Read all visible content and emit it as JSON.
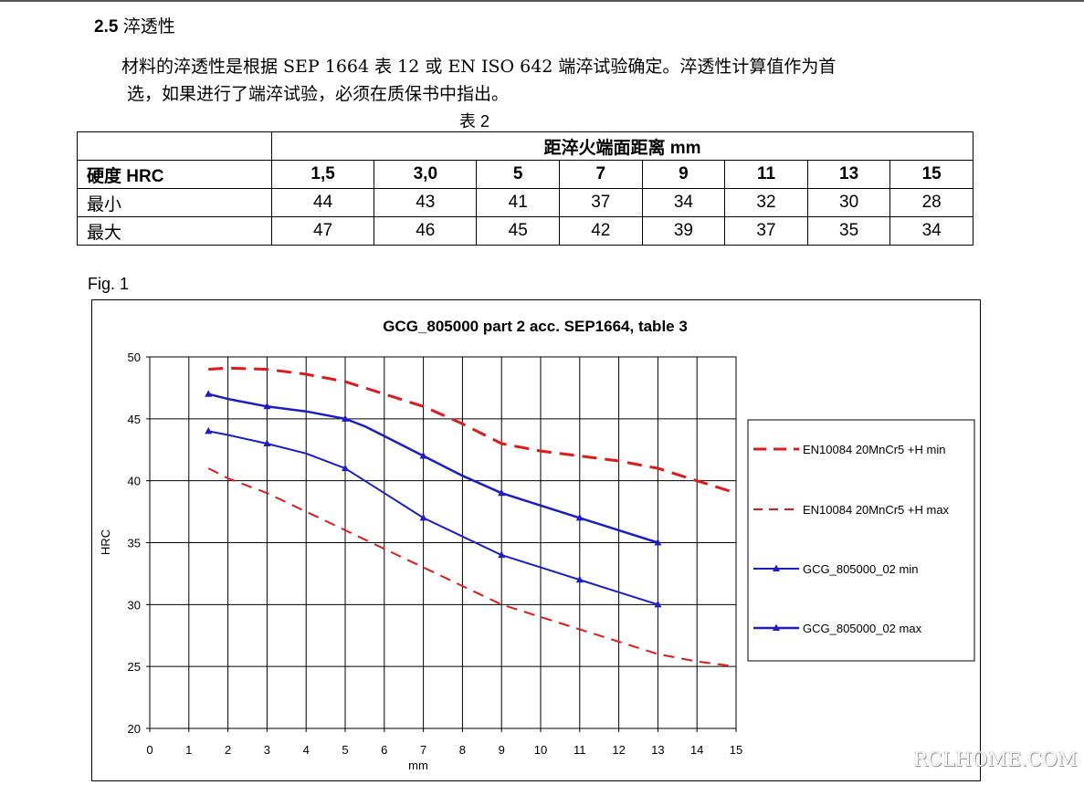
{
  "section": {
    "number": "2.5",
    "title": "淬透性"
  },
  "paragraph": {
    "line1": "材料的淬透性是根据 SEP 1664 表 12 或 EN ISO 642 端淬试验确定。淬透性计算值作为首",
    "line2": "选，如果进行了端淬试验，必须在质保书中指出。"
  },
  "table": {
    "caption": "表 2",
    "span_header": "距淬火端面距离  mm",
    "hardness_label": "硬度  HRC",
    "distances": [
      "1,5",
      "3,0",
      "5",
      "7",
      "9",
      "11",
      "13",
      "15"
    ],
    "rows": [
      {
        "label": "最小",
        "values": [
          "44",
          "43",
          "41",
          "37",
          "34",
          "32",
          "30",
          "28"
        ]
      },
      {
        "label": "最大",
        "values": [
          "47",
          "46",
          "45",
          "42",
          "39",
          "37",
          "35",
          "34"
        ]
      }
    ]
  },
  "figure_label": "Fig. 1",
  "chart_data": {
    "type": "line",
    "title": "GCG_805000 part 2 acc. SEP1664, table 3",
    "xlabel": "mm",
    "ylabel": "HRC",
    "xlim": [
      0,
      15
    ],
    "ylim": [
      20,
      50
    ],
    "xticks": [
      "0",
      "1",
      "2",
      "3",
      "4",
      "5",
      "6",
      "7",
      "8",
      "9",
      "10",
      "11",
      "12",
      "13",
      "14",
      "15"
    ],
    "yticks": [
      "20",
      "25",
      "30",
      "35",
      "40",
      "45",
      "50"
    ],
    "grid": true,
    "legend_position": "right",
    "series": [
      {
        "name": "EN10084 20MnCr5 +H min",
        "style": "dashed-thick",
        "color": "#e0191b",
        "x": [
          1.5,
          2,
          3,
          4,
          5,
          6,
          7,
          8,
          9,
          10,
          11,
          12,
          13,
          14,
          15
        ],
        "y": [
          49,
          49.1,
          49,
          48.6,
          48,
          47,
          46,
          44.6,
          43,
          42.4,
          42,
          41.6,
          41,
          40,
          39
        ]
      },
      {
        "name": "EN10084 20MnCr5 +H max",
        "style": "dashed",
        "color": "#e0191b",
        "x": [
          1.5,
          2,
          3,
          4,
          5,
          6,
          7,
          8,
          9,
          10,
          11,
          12,
          13,
          14,
          15
        ],
        "y": [
          41,
          40.2,
          39,
          37.5,
          36,
          34.5,
          33,
          31.5,
          30,
          29,
          28,
          27,
          26,
          25.4,
          25
        ]
      },
      {
        "name": "GCG_805000_02 min",
        "style": "solid-markers",
        "color": "#1c1cc8",
        "x": [
          1.5,
          2,
          3,
          4,
          5,
          6,
          7,
          8,
          9,
          10,
          11,
          12,
          13
        ],
        "y": [
          44,
          43.7,
          43,
          42.2,
          41,
          39,
          37,
          35.5,
          34,
          33,
          32,
          31,
          30
        ]
      },
      {
        "name": "GCG_805000_02 max",
        "style": "solid-markers-thick",
        "color": "#1c1cc8",
        "x": [
          1.5,
          2,
          3,
          4,
          5,
          5.5,
          6,
          7,
          8,
          9,
          10,
          11,
          12,
          13
        ],
        "y": [
          47,
          46.6,
          46,
          45.6,
          45,
          44.4,
          43.6,
          42,
          40.4,
          39,
          38,
          37,
          36,
          35
        ]
      }
    ],
    "marker_points": [
      {
        "x": [
          1.5,
          3,
          5,
          7,
          9,
          11,
          13
        ],
        "y": [
          44,
          43,
          41,
          37,
          34,
          32,
          30
        ]
      },
      {
        "x": [
          1.5,
          3,
          5,
          7,
          9,
          11,
          13
        ],
        "y": [
          47,
          46,
          45,
          42,
          39,
          37,
          35
        ]
      }
    ]
  },
  "watermark": "RCLHOME.COM"
}
